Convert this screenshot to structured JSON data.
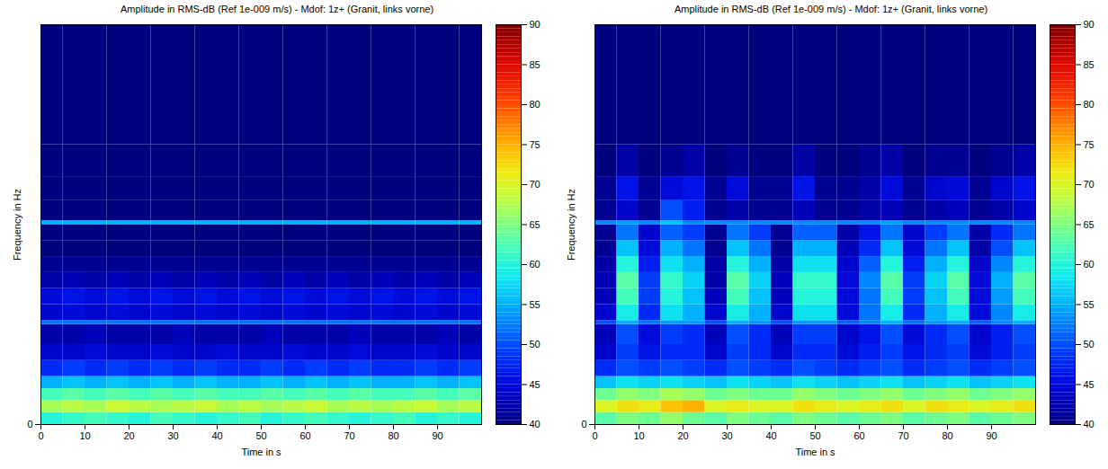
{
  "chart_data": [
    {
      "type": "heatmap",
      "title": "Amplitude in RMS-dB (Ref 1e-009 m/s) - Mdof: 1z+ (Granit, links vorne)",
      "x_label": "Time in s",
      "y_label": "Frequency in Hz",
      "xlim": [
        0,
        100
      ],
      "xticks": [
        0,
        10,
        20,
        30,
        40,
        50,
        60,
        70,
        80,
        90
      ],
      "ylim": [
        0,
        100
      ],
      "yticks": [
        0
      ],
      "x_edges": [
        0,
        5,
        10,
        15,
        20,
        25,
        30,
        35,
        40,
        45,
        50,
        55,
        60,
        65,
        70,
        75,
        80,
        85,
        90,
        95,
        100
      ],
      "y_edges": [
        0,
        3,
        6,
        9,
        12,
        16,
        20,
        25,
        26,
        30,
        34,
        38,
        42,
        46,
        50,
        51,
        56,
        62,
        70,
        100
      ],
      "cells": [
        [
          60,
          61,
          62,
          61,
          60,
          62,
          61,
          60,
          61,
          62,
          60,
          61,
          62,
          61,
          60,
          61,
          62,
          60,
          61,
          60
        ],
        [
          67,
          68,
          67,
          69,
          68,
          67,
          68,
          69,
          67,
          68,
          67,
          68,
          69,
          67,
          68,
          67,
          68,
          69,
          67,
          68
        ],
        [
          62,
          63,
          62,
          63,
          62,
          63,
          62,
          63,
          62,
          62,
          63,
          62,
          63,
          62,
          63,
          62,
          62,
          63,
          62,
          63
        ],
        [
          55,
          56,
          55,
          56,
          55,
          56,
          55,
          56,
          55,
          55,
          56,
          55,
          56,
          55,
          56,
          55,
          55,
          56,
          55,
          56
        ],
        [
          48,
          49,
          48,
          49,
          48,
          49,
          48,
          49,
          48,
          48,
          49,
          48,
          49,
          48,
          49,
          48,
          48,
          49,
          48,
          49
        ],
        [
          44,
          44,
          45,
          44,
          44,
          45,
          44,
          44,
          45,
          44,
          44,
          45,
          44,
          44,
          45,
          44,
          44,
          45,
          44,
          44
        ],
        [
          42,
          42,
          43,
          42,
          42,
          42,
          43,
          42,
          42,
          42,
          43,
          42,
          42,
          42,
          43,
          42,
          42,
          42,
          43,
          42
        ],
        [
          52,
          52,
          52,
          52,
          52,
          52,
          52,
          52,
          52,
          52,
          52,
          52,
          52,
          52,
          52,
          52,
          52,
          52,
          52,
          52
        ],
        [
          44,
          45,
          44,
          45,
          44,
          45,
          44,
          45,
          44,
          45,
          44,
          45,
          44,
          45,
          44,
          45,
          44,
          45,
          44,
          45
        ],
        [
          45,
          46,
          45,
          46,
          45,
          46,
          45,
          46,
          45,
          46,
          45,
          46,
          45,
          46,
          45,
          46,
          45,
          46,
          45,
          46
        ],
        [
          42,
          43,
          42,
          43,
          42,
          43,
          42,
          43,
          42,
          43,
          42,
          43,
          42,
          43,
          42,
          43,
          42,
          43,
          42,
          43
        ],
        [
          41,
          41,
          41,
          41,
          41,
          41,
          41,
          41,
          41,
          41,
          41,
          41,
          41,
          41,
          41,
          41,
          41,
          41,
          41,
          41
        ],
        [
          40,
          40,
          40,
          40,
          40,
          40,
          40,
          40,
          40,
          40,
          40,
          40,
          40,
          40,
          40,
          40,
          40,
          40,
          40,
          40
        ],
        [
          40,
          40,
          40,
          40,
          40,
          40,
          40,
          40,
          40,
          40,
          40,
          40,
          40,
          40,
          40,
          40,
          40,
          40,
          40,
          40
        ],
        [
          55,
          55,
          55,
          55,
          55,
          55,
          55,
          55,
          55,
          55,
          55,
          55,
          55,
          55,
          55,
          55,
          55,
          55,
          55,
          55
        ],
        [
          40,
          40,
          40,
          40,
          40,
          40,
          40,
          40,
          40,
          40,
          40,
          40,
          40,
          40,
          40,
          40,
          40,
          40,
          40,
          40
        ],
        [
          40,
          40,
          40,
          40,
          40,
          40,
          40,
          40,
          40,
          40,
          40,
          40,
          40,
          40,
          40,
          40,
          40,
          40,
          40,
          40
        ],
        [
          40,
          40,
          40,
          40,
          40,
          40,
          40,
          40,
          40,
          40,
          40,
          40,
          40,
          40,
          40,
          40,
          40,
          40,
          40,
          40
        ],
        [
          40,
          40,
          40,
          40,
          40,
          40,
          40,
          40,
          40,
          40,
          40,
          40,
          40,
          40,
          40,
          40,
          40,
          40,
          40,
          40
        ]
      ],
      "colorbar": {
        "range": [
          40,
          90
        ],
        "ticks": [
          40,
          45,
          50,
          55,
          60,
          65,
          70,
          75,
          80,
          85,
          90
        ]
      }
    },
    {
      "type": "heatmap",
      "title": "Amplitude in RMS-dB (Ref 1e-009 m/s) - Mdof: 1z+ (Granit, links vorne)",
      "x_label": "Time in s",
      "y_label": "Frequency in Hz",
      "xlim": [
        0,
        100
      ],
      "xticks": [
        0,
        10,
        20,
        30,
        40,
        50,
        60,
        70,
        80,
        90
      ],
      "ylim": [
        0,
        100
      ],
      "yticks": [
        0
      ],
      "x_edges": [
        0,
        5,
        10,
        15,
        20,
        25,
        30,
        35,
        40,
        45,
        50,
        55,
        60,
        65,
        70,
        75,
        80,
        85,
        90,
        95,
        100
      ],
      "y_edges": [
        0,
        3,
        6,
        9,
        12,
        16,
        20,
        25,
        26,
        30,
        34,
        38,
        42,
        46,
        50,
        51,
        56,
        62,
        70,
        100
      ],
      "cells": [
        [
          63,
          65,
          64,
          66,
          64,
          63,
          65,
          64,
          63,
          65,
          64,
          63,
          64,
          65,
          63,
          64,
          65,
          63,
          64,
          65
        ],
        [
          70,
          72,
          71,
          74,
          75,
          70,
          71,
          70,
          70,
          72,
          71,
          70,
          71,
          72,
          70,
          72,
          71,
          70,
          71,
          72
        ],
        [
          64,
          66,
          65,
          67,
          66,
          64,
          65,
          64,
          64,
          66,
          65,
          64,
          65,
          66,
          64,
          65,
          66,
          64,
          65,
          66
        ],
        [
          56,
          58,
          57,
          58,
          57,
          56,
          58,
          57,
          56,
          58,
          57,
          56,
          57,
          58,
          56,
          57,
          58,
          56,
          57,
          58
        ],
        [
          48,
          50,
          49,
          50,
          49,
          48,
          50,
          49,
          48,
          50,
          49,
          48,
          49,
          50,
          48,
          49,
          50,
          48,
          49,
          50
        ],
        [
          44,
          49,
          46,
          48,
          48,
          44,
          49,
          48,
          44,
          48,
          48,
          45,
          47,
          49,
          46,
          48,
          49,
          45,
          47,
          49
        ],
        [
          43,
          50,
          45,
          49,
          48,
          43,
          50,
          48,
          43,
          49,
          49,
          44,
          46,
          50,
          45,
          48,
          50,
          44,
          47,
          50
        ],
        [
          50,
          55,
          52,
          54,
          54,
          50,
          55,
          54,
          50,
          54,
          54,
          51,
          53,
          55,
          52,
          54,
          55,
          51,
          53,
          55
        ],
        [
          44,
          59,
          48,
          58,
          55,
          44,
          59,
          55,
          44,
          58,
          58,
          45,
          52,
          59,
          48,
          55,
          59,
          45,
          53,
          59
        ],
        [
          43,
          62,
          49,
          60,
          56,
          43,
          62,
          56,
          43,
          60,
          60,
          45,
          52,
          62,
          49,
          56,
          62,
          45,
          54,
          62
        ],
        [
          43,
          63,
          49,
          61,
          57,
          42,
          63,
          57,
          43,
          61,
          61,
          45,
          53,
          63,
          49,
          57,
          63,
          45,
          55,
          63
        ],
        [
          42,
          60,
          47,
          58,
          55,
          42,
          60,
          55,
          42,
          58,
          58,
          44,
          51,
          60,
          47,
          55,
          60,
          44,
          53,
          60
        ],
        [
          41,
          56,
          45,
          55,
          52,
          41,
          56,
          52,
          41,
          55,
          55,
          43,
          48,
          56,
          45,
          52,
          56,
          42,
          50,
          56
        ],
        [
          41,
          52,
          44,
          51,
          49,
          41,
          52,
          49,
          41,
          51,
          51,
          42,
          46,
          52,
          44,
          49,
          52,
          42,
          48,
          52
        ],
        [
          53,
          54,
          53,
          56,
          53,
          53,
          53,
          53,
          53,
          53,
          53,
          53,
          53,
          54,
          53,
          53,
          53,
          53,
          53,
          53
        ],
        [
          41,
          44,
          41,
          50,
          47,
          41,
          42,
          41,
          41,
          43,
          41,
          41,
          42,
          43,
          41,
          42,
          43,
          41,
          42,
          44
        ],
        [
          41,
          46,
          41,
          45,
          46,
          41,
          45,
          41,
          41,
          46,
          41,
          41,
          42,
          45,
          41,
          44,
          45,
          41,
          44,
          46
        ],
        [
          40,
          42,
          40,
          41,
          42,
          40,
          41,
          40,
          40,
          42,
          40,
          40,
          41,
          42,
          40,
          41,
          41,
          40,
          41,
          42
        ],
        [
          40,
          40,
          40,
          40,
          40,
          40,
          40,
          40,
          40,
          40,
          40,
          40,
          40,
          40,
          40,
          40,
          40,
          40,
          40,
          40
        ]
      ],
      "colorbar": {
        "range": [
          40,
          90
        ],
        "ticks": [
          40,
          45,
          50,
          55,
          60,
          65,
          70,
          75,
          80,
          85,
          90
        ]
      }
    }
  ]
}
